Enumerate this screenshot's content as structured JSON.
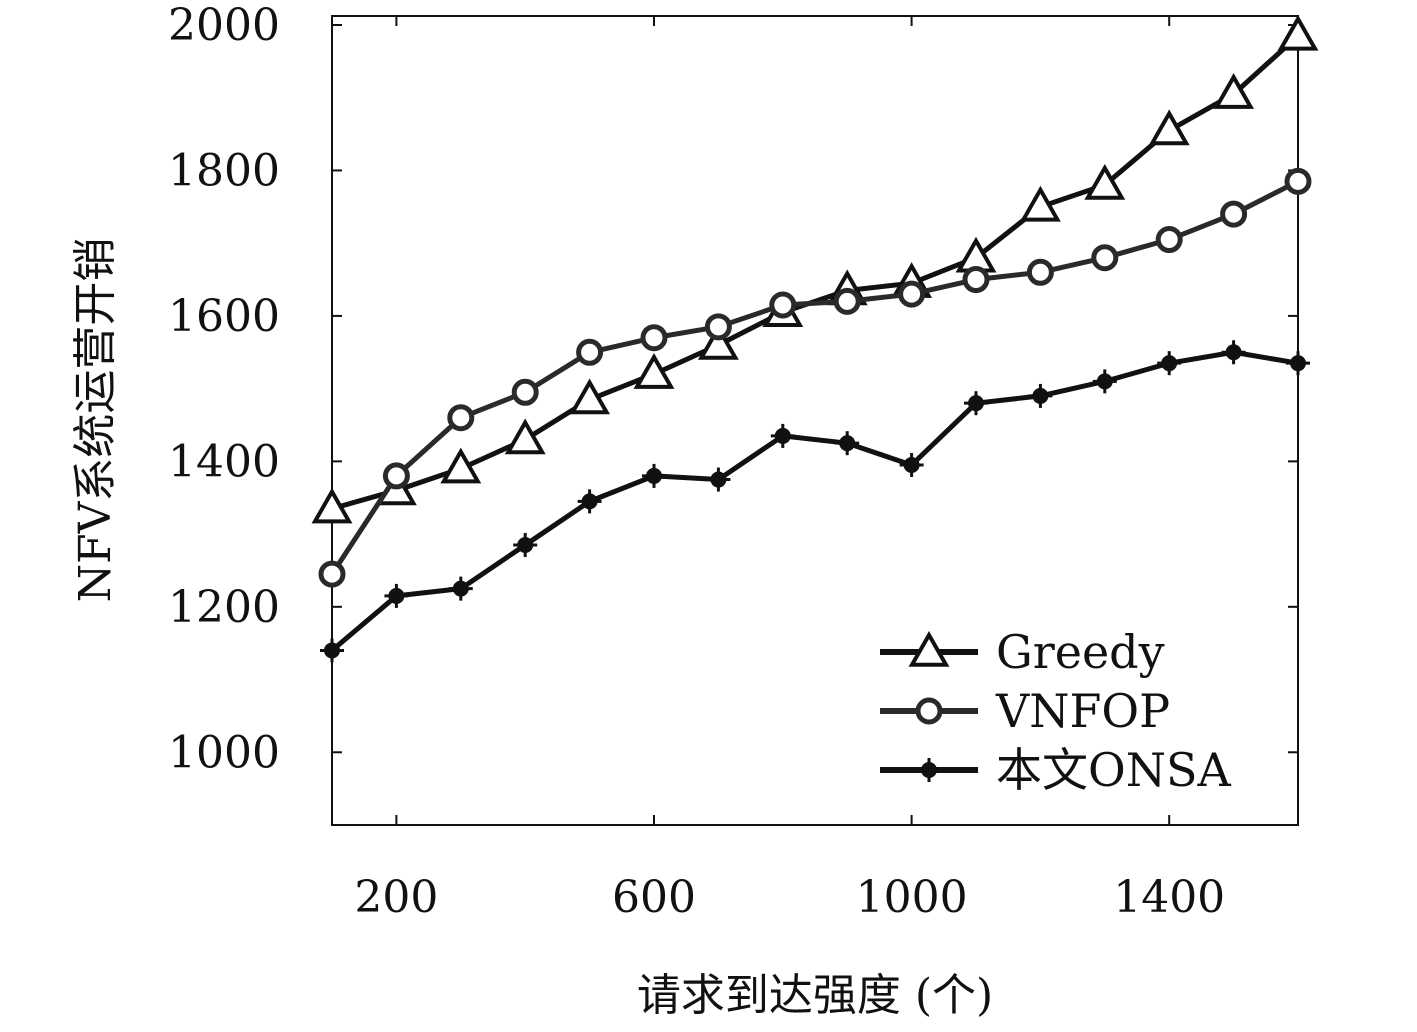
{
  "chart_data": {
    "type": "line",
    "xlabel": "请求到达强度 (个)",
    "ylabel": "NFV系统运营开销",
    "xlim": [
      100,
      1600
    ],
    "ylim": [
      900,
      2000
    ],
    "xticks": [
      200,
      600,
      1000,
      1400
    ],
    "yticks": [
      1000,
      1200,
      1400,
      1600,
      1800,
      2000
    ],
    "grid": false,
    "legend_position": "bottom-right",
    "x": [
      100,
      200,
      300,
      400,
      500,
      600,
      700,
      800,
      900,
      1000,
      1100,
      1200,
      1300,
      1400,
      1500,
      1600
    ],
    "series": [
      {
        "name": "Greedy",
        "marker": "triangle",
        "color": "#111111",
        "values": [
          1335,
          1360,
          1390,
          1430,
          1485,
          1520,
          1560,
          1605,
          1635,
          1645,
          1680,
          1750,
          1780,
          1855,
          1905,
          1985
        ]
      },
      {
        "name": "VNFOP",
        "marker": "circle",
        "color": "#2a2a2a",
        "values": [
          1245,
          1380,
          1460,
          1495,
          1550,
          1570,
          1585,
          1615,
          1620,
          1630,
          1650,
          1660,
          1680,
          1705,
          1740,
          1785
        ]
      },
      {
        "name": "本文ONSA",
        "marker": "star",
        "color": "#111111",
        "values": [
          1140,
          1215,
          1225,
          1285,
          1345,
          1380,
          1375,
          1435,
          1425,
          1395,
          1480,
          1490,
          1510,
          1535,
          1550,
          1535
        ]
      }
    ]
  }
}
